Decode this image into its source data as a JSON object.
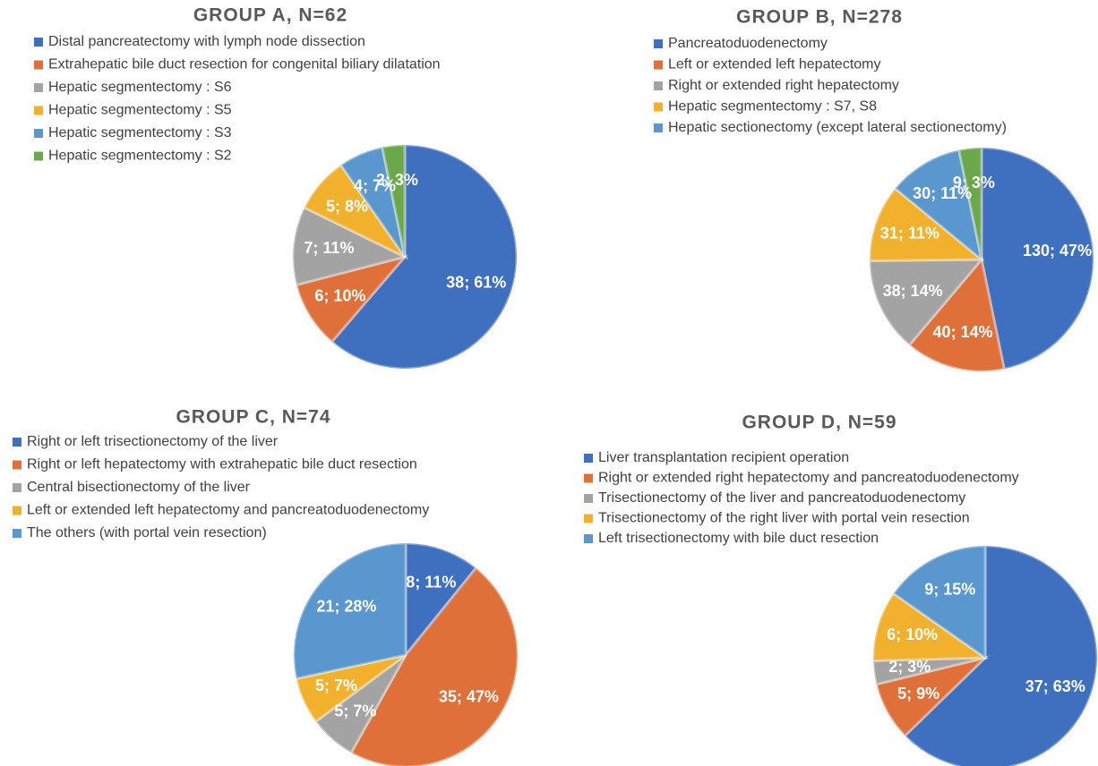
{
  "chart_data": [
    {
      "type": "pie",
      "title": "GROUP A, N=62",
      "categories": [
        "Distal pancreatectomy with lymph node dissection",
        "Extrahepatic bile duct resection for congenital biliary dilatation",
        "Hepatic segmentectomy : S6",
        "Hepatic segmentectomy : S5",
        "Hepatic segmentectomy : S3",
        "Hepatic segmentectomy : S2"
      ],
      "values": [
        38,
        6,
        7,
        5,
        4,
        2
      ],
      "value_labels": [
        "38; 61%",
        "6; 10%",
        "7; 11%",
        "5; 8%",
        "4; 7%",
        "2; 3%"
      ],
      "colors": [
        "#3f6fbf",
        "#e0703a",
        "#a3a3a3",
        "#f2b12c",
        "#5a97cf",
        "#6aa84a"
      ]
    },
    {
      "type": "pie",
      "title": "GROUP B, N=278",
      "categories": [
        "Pancreatoduodenectomy",
        "Left or extended left hepatectomy",
        "Right or extended right hepatectomy",
        "Hepatic segmentectomy : S7, S8",
        "Hepatic sectionectomy (except lateral sectionectomy)",
        null
      ],
      "values": [
        130,
        40,
        38,
        31,
        30,
        9
      ],
      "value_labels": [
        "130; 47%",
        "40; 14%",
        "38; 14%",
        "31; 11%",
        "30; 11%",
        "9; 3%"
      ],
      "colors": [
        "#3f6fbf",
        "#e0703a",
        "#a3a3a3",
        "#f2b12c",
        "#5a97cf",
        "#6aa84a"
      ]
    },
    {
      "type": "pie",
      "title": "GROUP C, N=74",
      "categories": [
        "Right or left trisectionectomy of the liver",
        "Right or left hepatectomy  with extrahepatic bile duct resection",
        "Central bisectionectomy of the liver",
        "Left or extended left hepatectomy and pancreatoduodenectomy",
        "The others (with portal vein resection)"
      ],
      "values": [
        8,
        35,
        5,
        5,
        21
      ],
      "value_labels": [
        "8; 11%",
        "35; 47%",
        "5; 7%",
        "5; 7%",
        "21; 28%"
      ],
      "colors": [
        "#3f6fbf",
        "#e0703a",
        "#a3a3a3",
        "#f2b12c",
        "#5a97cf"
      ]
    },
    {
      "type": "pie",
      "title": "GROUP D, N=59",
      "categories": [
        "Liver transplantation recipient operation",
        "Right or extended right hepatectomy and pancreatoduodenectomy",
        "Trisectionectomy of the liver and pancreatoduodenectomy",
        "Trisectionectomy of the right liver with portal vein resection",
        "Left trisectionectomy with bile duct resection"
      ],
      "values": [
        37,
        5,
        2,
        6,
        9
      ],
      "value_labels": [
        "37; 63%",
        "5; 9%",
        "2; 3%",
        "6; 10%",
        "9; 15%"
      ],
      "colors": [
        "#3f6fbf",
        "#e0703a",
        "#a3a3a3",
        "#f2b12c",
        "#5a97cf"
      ]
    }
  ]
}
